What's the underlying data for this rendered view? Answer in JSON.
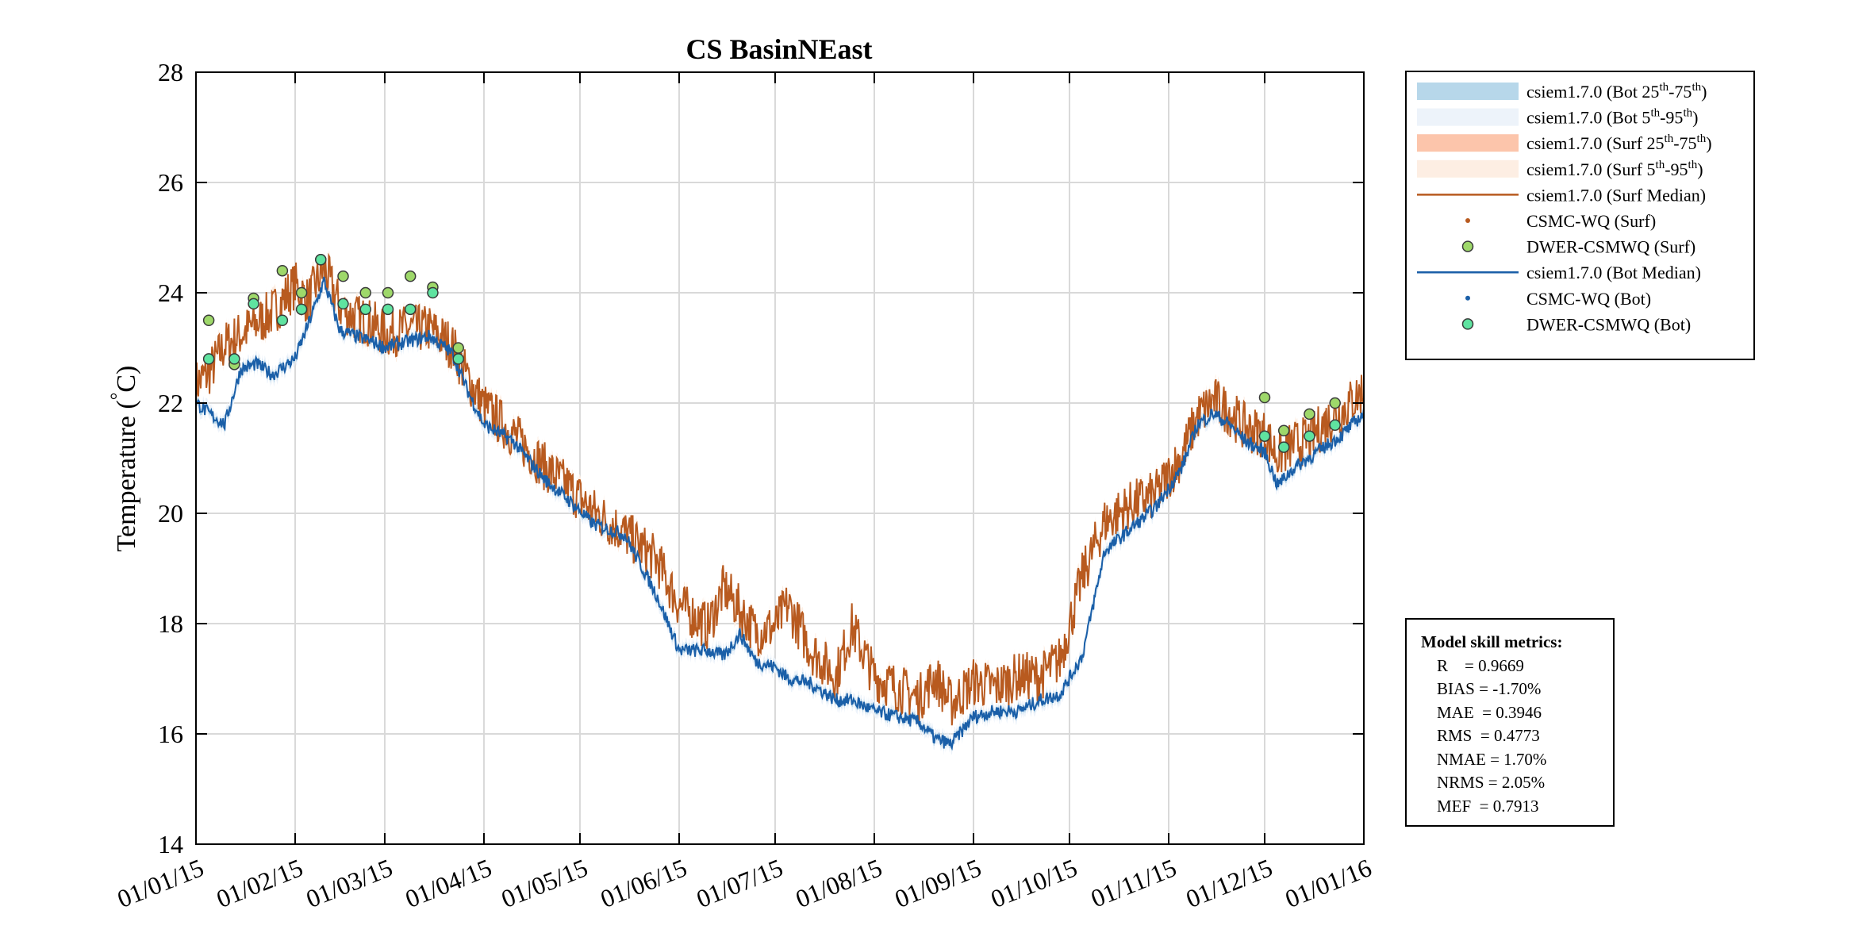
{
  "chart_data": {
    "type": "line",
    "title": "CS BasinNEast",
    "ylabel": "Temperature (°C)",
    "ylabel_main": "Temperature (",
    "ylabel_deg": "°",
    "ylabel_unit": "C)",
    "xlabel": "",
    "ylim": [
      14,
      28
    ],
    "xlim": [
      "2015-01-01",
      "2016-01-01"
    ],
    "yticks": [
      "14",
      "16",
      "18",
      "20",
      "22",
      "24",
      "26",
      "28"
    ],
    "xticks": [
      "01/01/15",
      "01/02/15",
      "01/03/15",
      "01/04/15",
      "01/05/15",
      "01/06/15",
      "01/07/15",
      "01/08/15",
      "01/09/15",
      "01/10/15",
      "01/11/15",
      "01/12/15",
      "01/01/16"
    ],
    "grid": true,
    "legend_placement": "outside-right-top",
    "legend": [
      {
        "text": "csiem1.7.0 (Bot 25",
        "sup1": "th",
        "mid": "-75",
        "sup2": "th",
        "end": ")",
        "kind": "patch",
        "color": "#b7d7ea"
      },
      {
        "text": "csiem1.7.0 (Bot 5",
        "sup1": "th",
        "mid": "-95",
        "sup2": "th",
        "end": ")",
        "kind": "patch",
        "color": "#edf3fa"
      },
      {
        "text": "csiem1.7.0 (Surf 25",
        "sup1": "th",
        "mid": "-75",
        "sup2": "th",
        "end": ")",
        "kind": "patch",
        "color": "#fcc5ab"
      },
      {
        "text": "csiem1.7.0 (Surf 5",
        "sup1": "th",
        "mid": "-95",
        "sup2": "th",
        "end": ")",
        "kind": "patch",
        "color": "#fdeee3"
      },
      {
        "text": "csiem1.7.0 (Surf Median)",
        "kind": "line",
        "color": "#b85a1f"
      },
      {
        "text": "CSMC-WQ (Surf)",
        "kind": "smalldot",
        "color": "#b85a1f"
      },
      {
        "text": "DWER-CSMWQ (Surf)",
        "kind": "dot",
        "color": "#9ed86a"
      },
      {
        "text": "csiem1.7.0 (Bot Median)",
        "kind": "line",
        "color": "#1a5fa8"
      },
      {
        "text": "CSMC-WQ (Bot)",
        "kind": "smalldot",
        "color": "#1a5fa8"
      },
      {
        "text": "DWER-CSMWQ (Bot)",
        "kind": "dot",
        "color": "#5fe3a0"
      }
    ],
    "series": [
      {
        "name": "csiem1.7.0 (Surf Median)",
        "color": "#b85a1f",
        "x": [
          "2015-01-01",
          "2015-01-05",
          "2015-01-10",
          "2015-01-15",
          "2015-01-20",
          "2015-01-25",
          "2015-02-01",
          "2015-02-05",
          "2015-02-10",
          "2015-02-15",
          "2015-02-20",
          "2015-02-25",
          "2015-03-01",
          "2015-03-08",
          "2015-03-15",
          "2015-03-22",
          "2015-03-27",
          "2015-04-01",
          "2015-04-10",
          "2015-04-20",
          "2015-04-28",
          "2015-05-05",
          "2015-05-15",
          "2015-05-25",
          "2015-06-01",
          "2015-06-10",
          "2015-06-15",
          "2015-06-20",
          "2015-06-25",
          "2015-07-01",
          "2015-07-05",
          "2015-07-12",
          "2015-07-20",
          "2015-07-25",
          "2015-08-01",
          "2015-08-08",
          "2015-08-15",
          "2015-08-20",
          "2015-08-25",
          "2015-09-01",
          "2015-09-08",
          "2015-09-15",
          "2015-09-22",
          "2015-09-28",
          "2015-10-05",
          "2015-10-12",
          "2015-10-20",
          "2015-10-28",
          "2015-11-05",
          "2015-11-10",
          "2015-11-15",
          "2015-11-20",
          "2015-11-25",
          "2015-12-01",
          "2015-12-05",
          "2015-12-10",
          "2015-12-15",
          "2015-12-20",
          "2015-12-25",
          "2016-01-01"
        ],
        "y": [
          22.3,
          22.5,
          23.0,
          23.2,
          23.4,
          23.6,
          24.1,
          23.8,
          24.4,
          23.7,
          23.5,
          23.4,
          23.2,
          23.3,
          23.3,
          23.0,
          22.4,
          21.9,
          21.4,
          20.8,
          20.4,
          20.0,
          19.6,
          19.1,
          18.3,
          17.9,
          18.6,
          18.2,
          17.8,
          17.9,
          18.3,
          17.5,
          17.0,
          17.9,
          17.0,
          16.8,
          16.6,
          17.0,
          16.5,
          16.9,
          16.8,
          17.0,
          17.0,
          17.3,
          18.8,
          19.8,
          20.1,
          20.3,
          21.0,
          21.7,
          22.0,
          21.8,
          21.5,
          21.4,
          21.0,
          21.2,
          21.3,
          21.6,
          21.8,
          22.2
        ]
      },
      {
        "name": "csiem1.7.0 (Bot Median)",
        "color": "#1a5fa8",
        "x": [
          "2015-01-01",
          "2015-01-05",
          "2015-01-10",
          "2015-01-15",
          "2015-01-20",
          "2015-01-25",
          "2015-02-01",
          "2015-02-05",
          "2015-02-10",
          "2015-02-15",
          "2015-02-20",
          "2015-02-25",
          "2015-03-01",
          "2015-03-08",
          "2015-03-15",
          "2015-03-22",
          "2015-03-27",
          "2015-04-01",
          "2015-04-10",
          "2015-04-20",
          "2015-04-28",
          "2015-05-05",
          "2015-05-15",
          "2015-05-25",
          "2015-06-01",
          "2015-06-10",
          "2015-06-15",
          "2015-06-20",
          "2015-06-25",
          "2015-07-01",
          "2015-07-05",
          "2015-07-12",
          "2015-07-20",
          "2015-07-25",
          "2015-08-01",
          "2015-08-08",
          "2015-08-15",
          "2015-08-20",
          "2015-08-25",
          "2015-09-01",
          "2015-09-08",
          "2015-09-15",
          "2015-09-22",
          "2015-09-28",
          "2015-10-05",
          "2015-10-12",
          "2015-10-20",
          "2015-10-28",
          "2015-11-05",
          "2015-11-10",
          "2015-11-15",
          "2015-11-20",
          "2015-11-25",
          "2015-12-01",
          "2015-12-05",
          "2015-12-10",
          "2015-12-15",
          "2015-12-20",
          "2015-12-25",
          "2016-01-01"
        ],
        "y": [
          22.0,
          21.8,
          21.6,
          22.6,
          22.7,
          22.5,
          22.8,
          23.4,
          24.2,
          23.3,
          23.2,
          23.1,
          23.0,
          23.1,
          23.2,
          22.9,
          22.2,
          21.6,
          21.3,
          20.6,
          20.2,
          19.8,
          19.6,
          18.5,
          17.5,
          17.5,
          17.4,
          17.8,
          17.3,
          17.2,
          17.0,
          16.9,
          16.6,
          16.6,
          16.4,
          16.3,
          16.2,
          15.9,
          15.8,
          16.3,
          16.4,
          16.4,
          16.6,
          16.7,
          17.4,
          19.3,
          19.7,
          20.1,
          20.8,
          21.6,
          21.8,
          21.6,
          21.3,
          21.1,
          20.5,
          20.8,
          21.0,
          21.2,
          21.4,
          21.8
        ]
      }
    ],
    "observations": [
      {
        "name": "DWER-CSMWQ (Surf)",
        "color": "#9ed86a",
        "x": [
          "2015-01-05",
          "2015-01-13",
          "2015-01-19",
          "2015-01-28",
          "2015-02-03",
          "2015-02-09",
          "2015-02-16",
          "2015-02-23",
          "2015-03-02",
          "2015-03-09",
          "2015-03-16",
          "2015-12-01",
          "2015-12-07",
          "2015-12-15",
          "2015-12-23"
        ],
        "y": [
          23.5,
          22.7,
          23.9,
          24.4,
          24.0,
          24.6,
          24.3,
          24.0,
          24.0,
          24.3,
          24.1,
          22.1,
          21.5,
          21.8,
          22.0
        ]
      },
      {
        "name": "DWER-CSMWQ (Bot)",
        "color": "#5fe3a0",
        "x": [
          "2015-01-05",
          "2015-01-13",
          "2015-01-19",
          "2015-01-28",
          "2015-02-03",
          "2015-02-09",
          "2015-02-16",
          "2015-02-23",
          "2015-03-02",
          "2015-03-09",
          "2015-03-16",
          "2015-03-24",
          "2015-12-01",
          "2015-12-07",
          "2015-12-15",
          "2015-12-23"
        ],
        "y": [
          22.8,
          22.8,
          23.8,
          23.5,
          23.7,
          24.6,
          23.8,
          23.7,
          23.7,
          23.7,
          24.0,
          22.8,
          21.4,
          21.2,
          21.4,
          21.6
        ]
      },
      {
        "name": "DWER-CSMWQ (Surf) late",
        "color": "#9ed86a",
        "x": [
          "2015-03-24"
        ],
        "y": [
          23.0
        ]
      }
    ]
  },
  "metrics": {
    "title": "Model skill metrics:",
    "lines": [
      "R    = 0.9669",
      "BIAS = -1.70%",
      "MAE  = 0.3946",
      "RMS  = 0.4773",
      "NMAE = 1.70%",
      "NRMS = 2.05%",
      "MEF  = 0.7913"
    ]
  }
}
